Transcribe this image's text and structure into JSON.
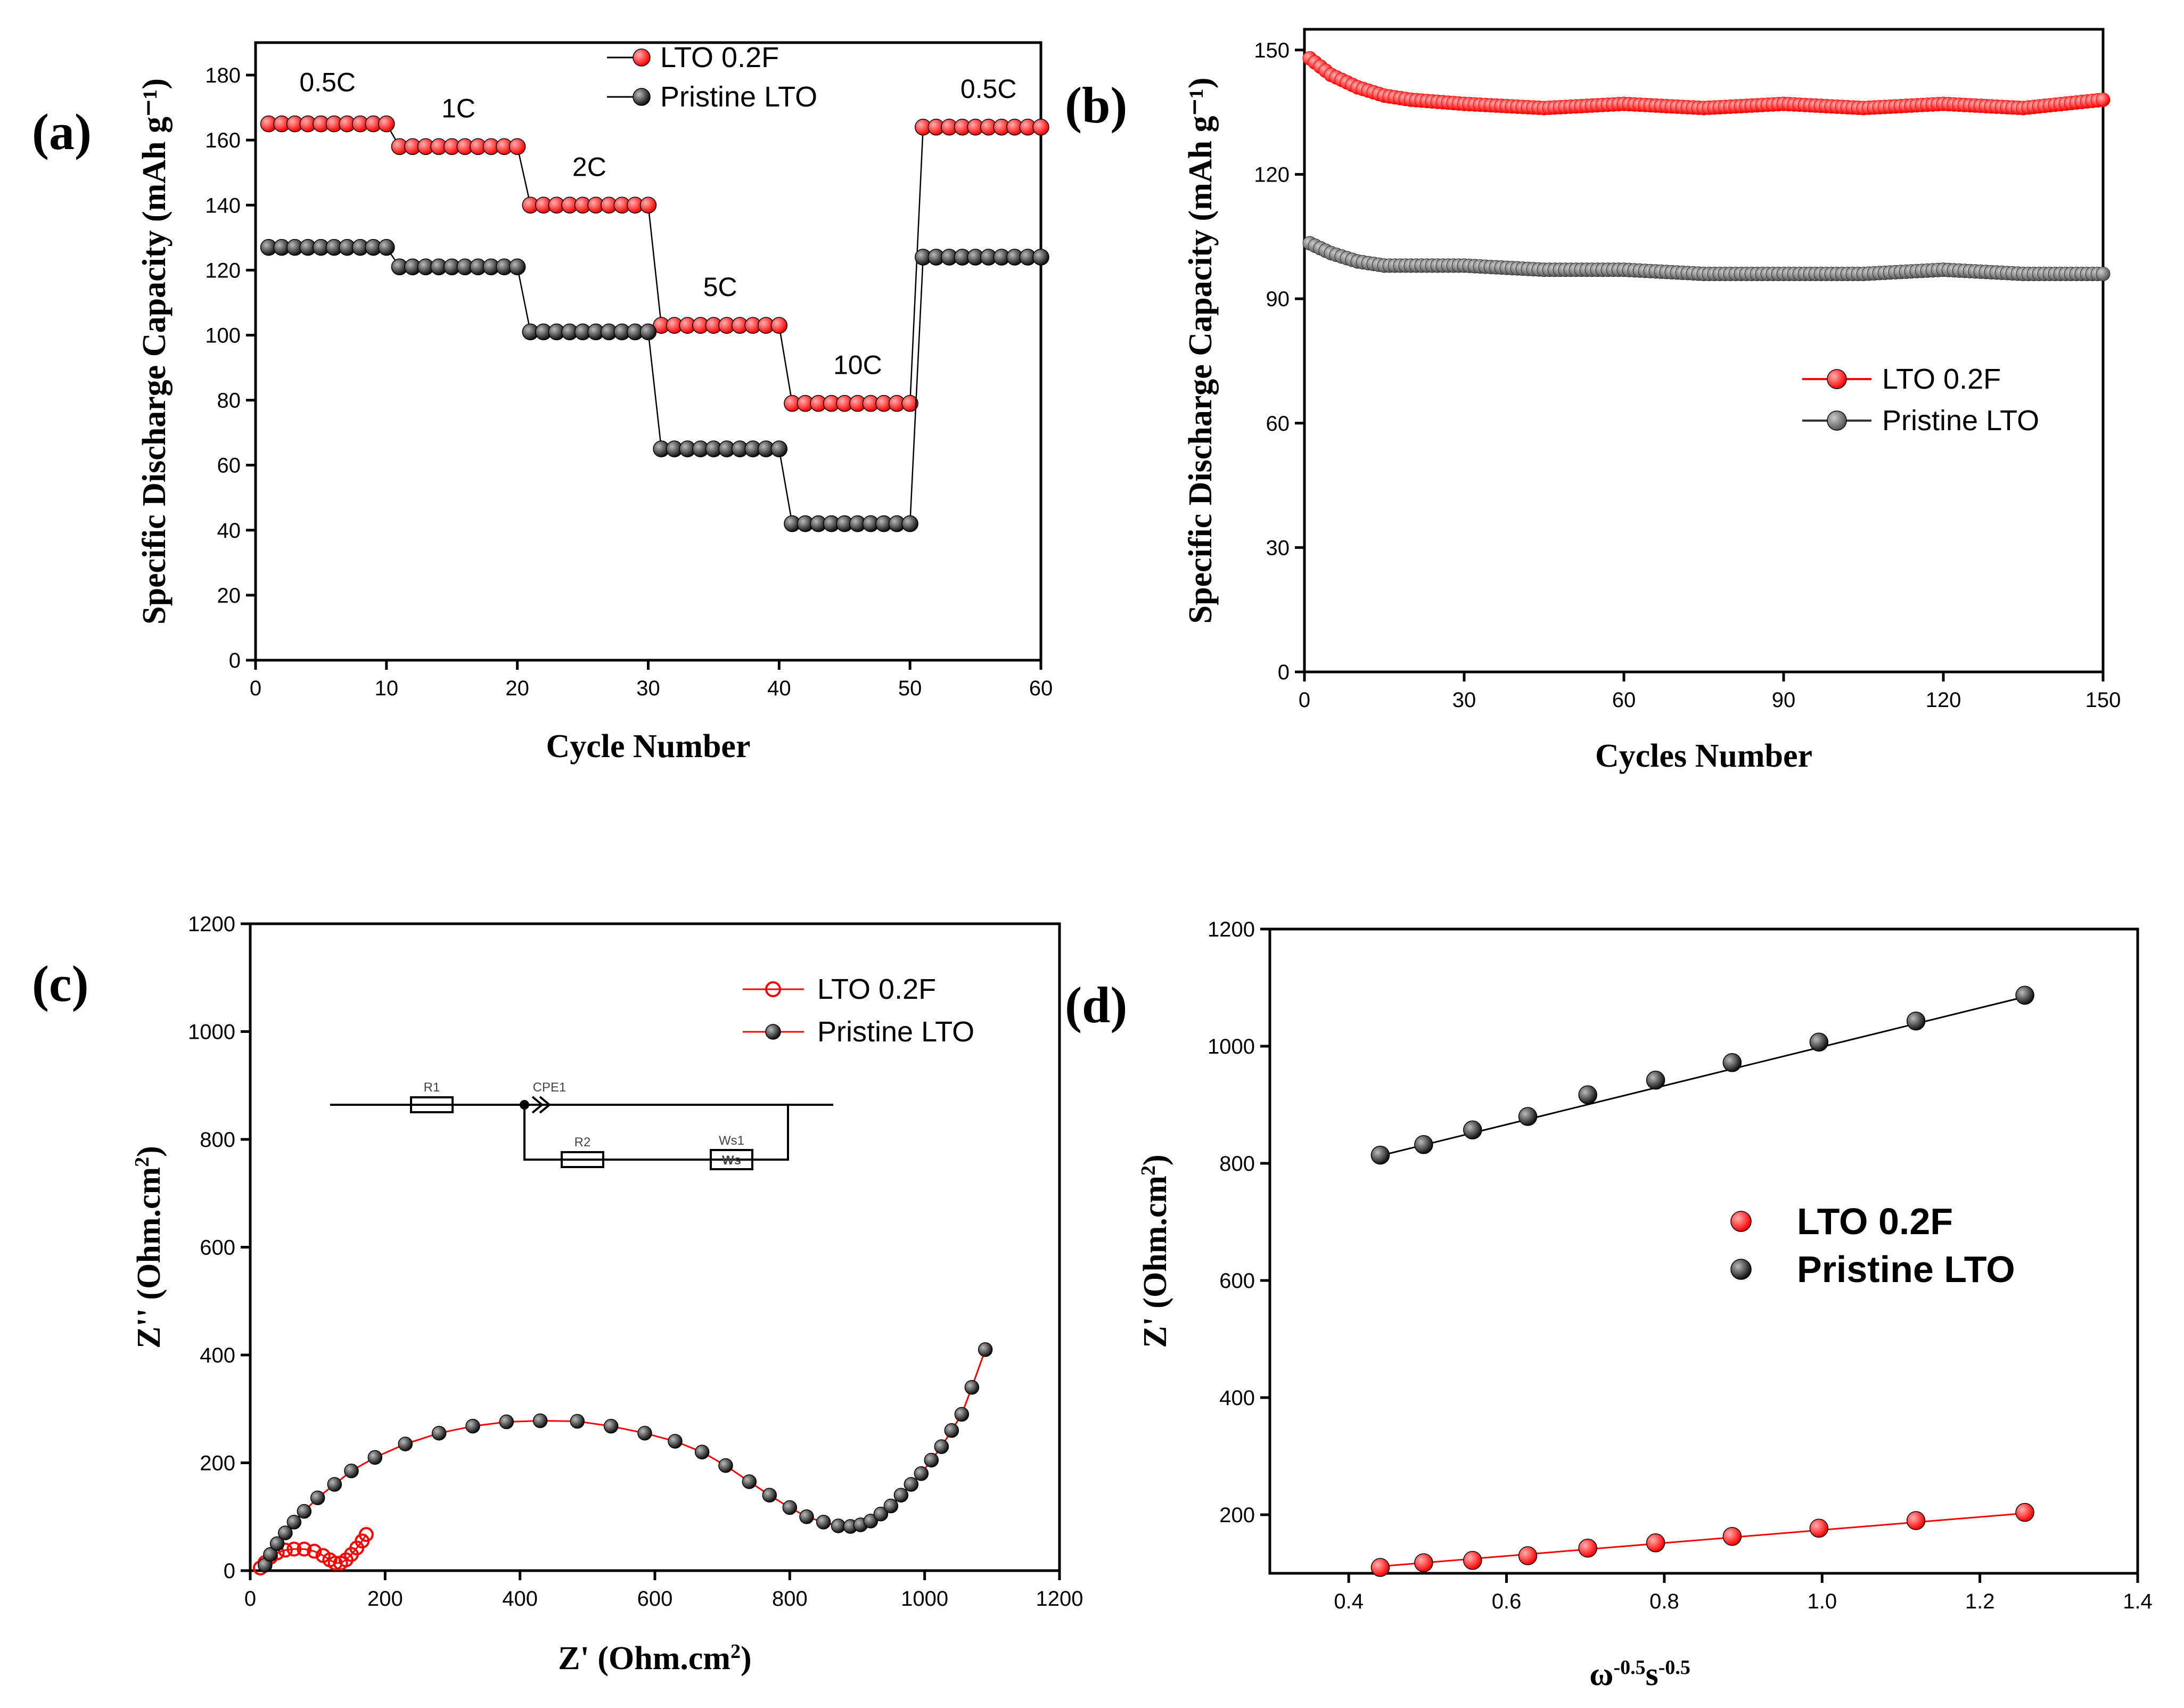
{
  "chart_data": [
    {
      "type": "scatter",
      "panel": "(a)",
      "xlabel": "Cycle Number",
      "ylabel": "Specific Discharge Capacity (mAh g⁻¹)",
      "xlim": [
        0,
        60
      ],
      "ylim": [
        0,
        190
      ],
      "xticks": [
        0,
        10,
        20,
        30,
        40,
        50,
        60
      ],
      "yticks": [
        0,
        20,
        40,
        60,
        80,
        100,
        120,
        140,
        160,
        180
      ],
      "legend": [
        "LTO 0.2F",
        "Pristine LTO"
      ],
      "rate_labels": [
        {
          "text": "0.5C",
          "x": 5.5,
          "y": 175
        },
        {
          "text": "1C",
          "x": 15.5,
          "y": 167
        },
        {
          "text": "2C",
          "x": 25.5,
          "y": 149
        },
        {
          "text": "5C",
          "x": 35.5,
          "y": 112
        },
        {
          "text": "10C",
          "x": 46,
          "y": 88
        },
        {
          "text": "0.5C",
          "x": 56,
          "y": 173
        }
      ],
      "segments": [
        {
          "start": 1,
          "end": 10,
          "lto": 165,
          "pristine": 127
        },
        {
          "start": 11,
          "end": 20,
          "lto": 158,
          "pristine": 121
        },
        {
          "start": 21,
          "end": 30,
          "lto": 140,
          "pristine": 101
        },
        {
          "start": 31,
          "end": 40,
          "lto": 103,
          "pristine": 65
        },
        {
          "start": 41,
          "end": 50,
          "lto": 79,
          "pristine": 42
        },
        {
          "start": 51,
          "end": 60,
          "lto": 164,
          "pristine": 124
        }
      ]
    },
    {
      "type": "scatter",
      "panel": "(b)",
      "xlabel": "Cycles Number",
      "ylabel": "Specific Discharge Capacity (mAh g⁻¹)",
      "xlim": [
        0,
        150
      ],
      "ylim": [
        0,
        155
      ],
      "xticks": [
        0,
        30,
        60,
        90,
        120,
        150
      ],
      "yticks": [
        0,
        30,
        60,
        90,
        120,
        150
      ],
      "legend": [
        "LTO 0.2F",
        "Pristine LTO"
      ],
      "series": [
        {
          "name": "LTO 0.2F",
          "x": [
            0,
            5,
            10,
            15,
            20,
            30,
            45,
            60,
            75,
            90,
            105,
            120,
            135,
            150
          ],
          "y": [
            149,
            144,
            141,
            139,
            138,
            137,
            136,
            137,
            136,
            137,
            136,
            137,
            136,
            138
          ]
        },
        {
          "name": "Pristine LTO",
          "x": [
            0,
            5,
            10,
            15,
            20,
            30,
            45,
            60,
            75,
            90,
            105,
            120,
            135,
            150
          ],
          "y": [
            104,
            101,
            99,
            98,
            98,
            98,
            97,
            97,
            96,
            96,
            96,
            97,
            96,
            96
          ]
        }
      ]
    },
    {
      "type": "scatter",
      "panel": "(c)",
      "xlabel": "Z' (Ohm.cm²)",
      "ylabel": "Z'' (Ohm.cm²)",
      "xlim": [
        0,
        1200
      ],
      "ylim": [
        0,
        1200
      ],
      "xticks": [
        0,
        200,
        400,
        600,
        800,
        1000,
        1200
      ],
      "yticks": [
        0,
        200,
        400,
        600,
        800,
        1000,
        1200
      ],
      "legend": [
        "LTO 0.2F",
        "Pristine LTO"
      ],
      "circuit_labels": [
        "R1",
        "CPE1",
        "R2",
        "Ws1",
        "Ws"
      ],
      "series": [
        {
          "name": "LTO 0.2F",
          "x": [
            15,
            22,
            30,
            40,
            52,
            65,
            80,
            95,
            108,
            118,
            126,
            134,
            142,
            150,
            158,
            166,
            172
          ],
          "y": [
            5,
            15,
            25,
            33,
            38,
            40,
            40,
            36,
            28,
            20,
            14,
            14,
            20,
            30,
            42,
            55,
            67
          ]
        },
        {
          "name": "Pristine LTO",
          "x": [
            22,
            30,
            40,
            52,
            65,
            80,
            100,
            125,
            150,
            185,
            230,
            280,
            330,
            380,
            430,
            485,
            535,
            585,
            630,
            670,
            705,
            740,
            770,
            800,
            825,
            850,
            872,
            890,
            905,
            920,
            935,
            950,
            965,
            980,
            995,
            1010,
            1025,
            1040,
            1055,
            1070,
            1090
          ],
          "y": [
            10,
            30,
            50,
            70,
            90,
            110,
            135,
            160,
            185,
            210,
            235,
            255,
            268,
            276,
            278,
            277,
            268,
            255,
            240,
            220,
            195,
            165,
            140,
            117,
            100,
            90,
            83,
            82,
            85,
            92,
            105,
            120,
            140,
            160,
            180,
            205,
            230,
            260,
            290,
            340,
            410
          ]
        }
      ]
    },
    {
      "type": "scatter",
      "panel": "(d)",
      "xlabel": "ω^-0.5 s^-0.5",
      "ylabel": "Z' (Ohm.cm²)",
      "xlim": [
        0.3,
        1.4
      ],
      "ylim": [
        100,
        1200
      ],
      "xticks": [
        0.4,
        0.6,
        0.8,
        1.0,
        1.2,
        1.4
      ],
      "yticks": [
        200,
        400,
        600,
        800,
        1000,
        1200
      ],
      "legend": [
        "LTO 0.2F",
        "Pristine LTO"
      ],
      "series": [
        {
          "name": "LTO 0.2F",
          "x": [
            0.44,
            0.495,
            0.557,
            0.627,
            0.703,
            0.789,
            0.886,
            0.996,
            1.119,
            1.257
          ],
          "y": [
            110,
            118,
            122,
            130,
            143,
            152,
            163,
            177,
            190,
            204
          ]
        },
        {
          "name": "Pristine LTO",
          "x": [
            0.44,
            0.495,
            0.557,
            0.627,
            0.703,
            0.789,
            0.886,
            0.996,
            1.119,
            1.257
          ],
          "y": [
            814,
            832,
            857,
            880,
            917,
            942,
            972,
            1007,
            1043,
            1087
          ]
        }
      ],
      "fits": [
        {
          "name": "LTO 0.2F",
          "slope": 111,
          "intercept": 63
        },
        {
          "name": "Pristine LTO",
          "slope": 332,
          "intercept": 667
        }
      ]
    }
  ],
  "colors": {
    "red": "#ff0000",
    "red_dark": "#b30000",
    "black": "#111111",
    "gray": "#555555",
    "fit_black": "#000000",
    "fit_red": "#ff0000"
  }
}
